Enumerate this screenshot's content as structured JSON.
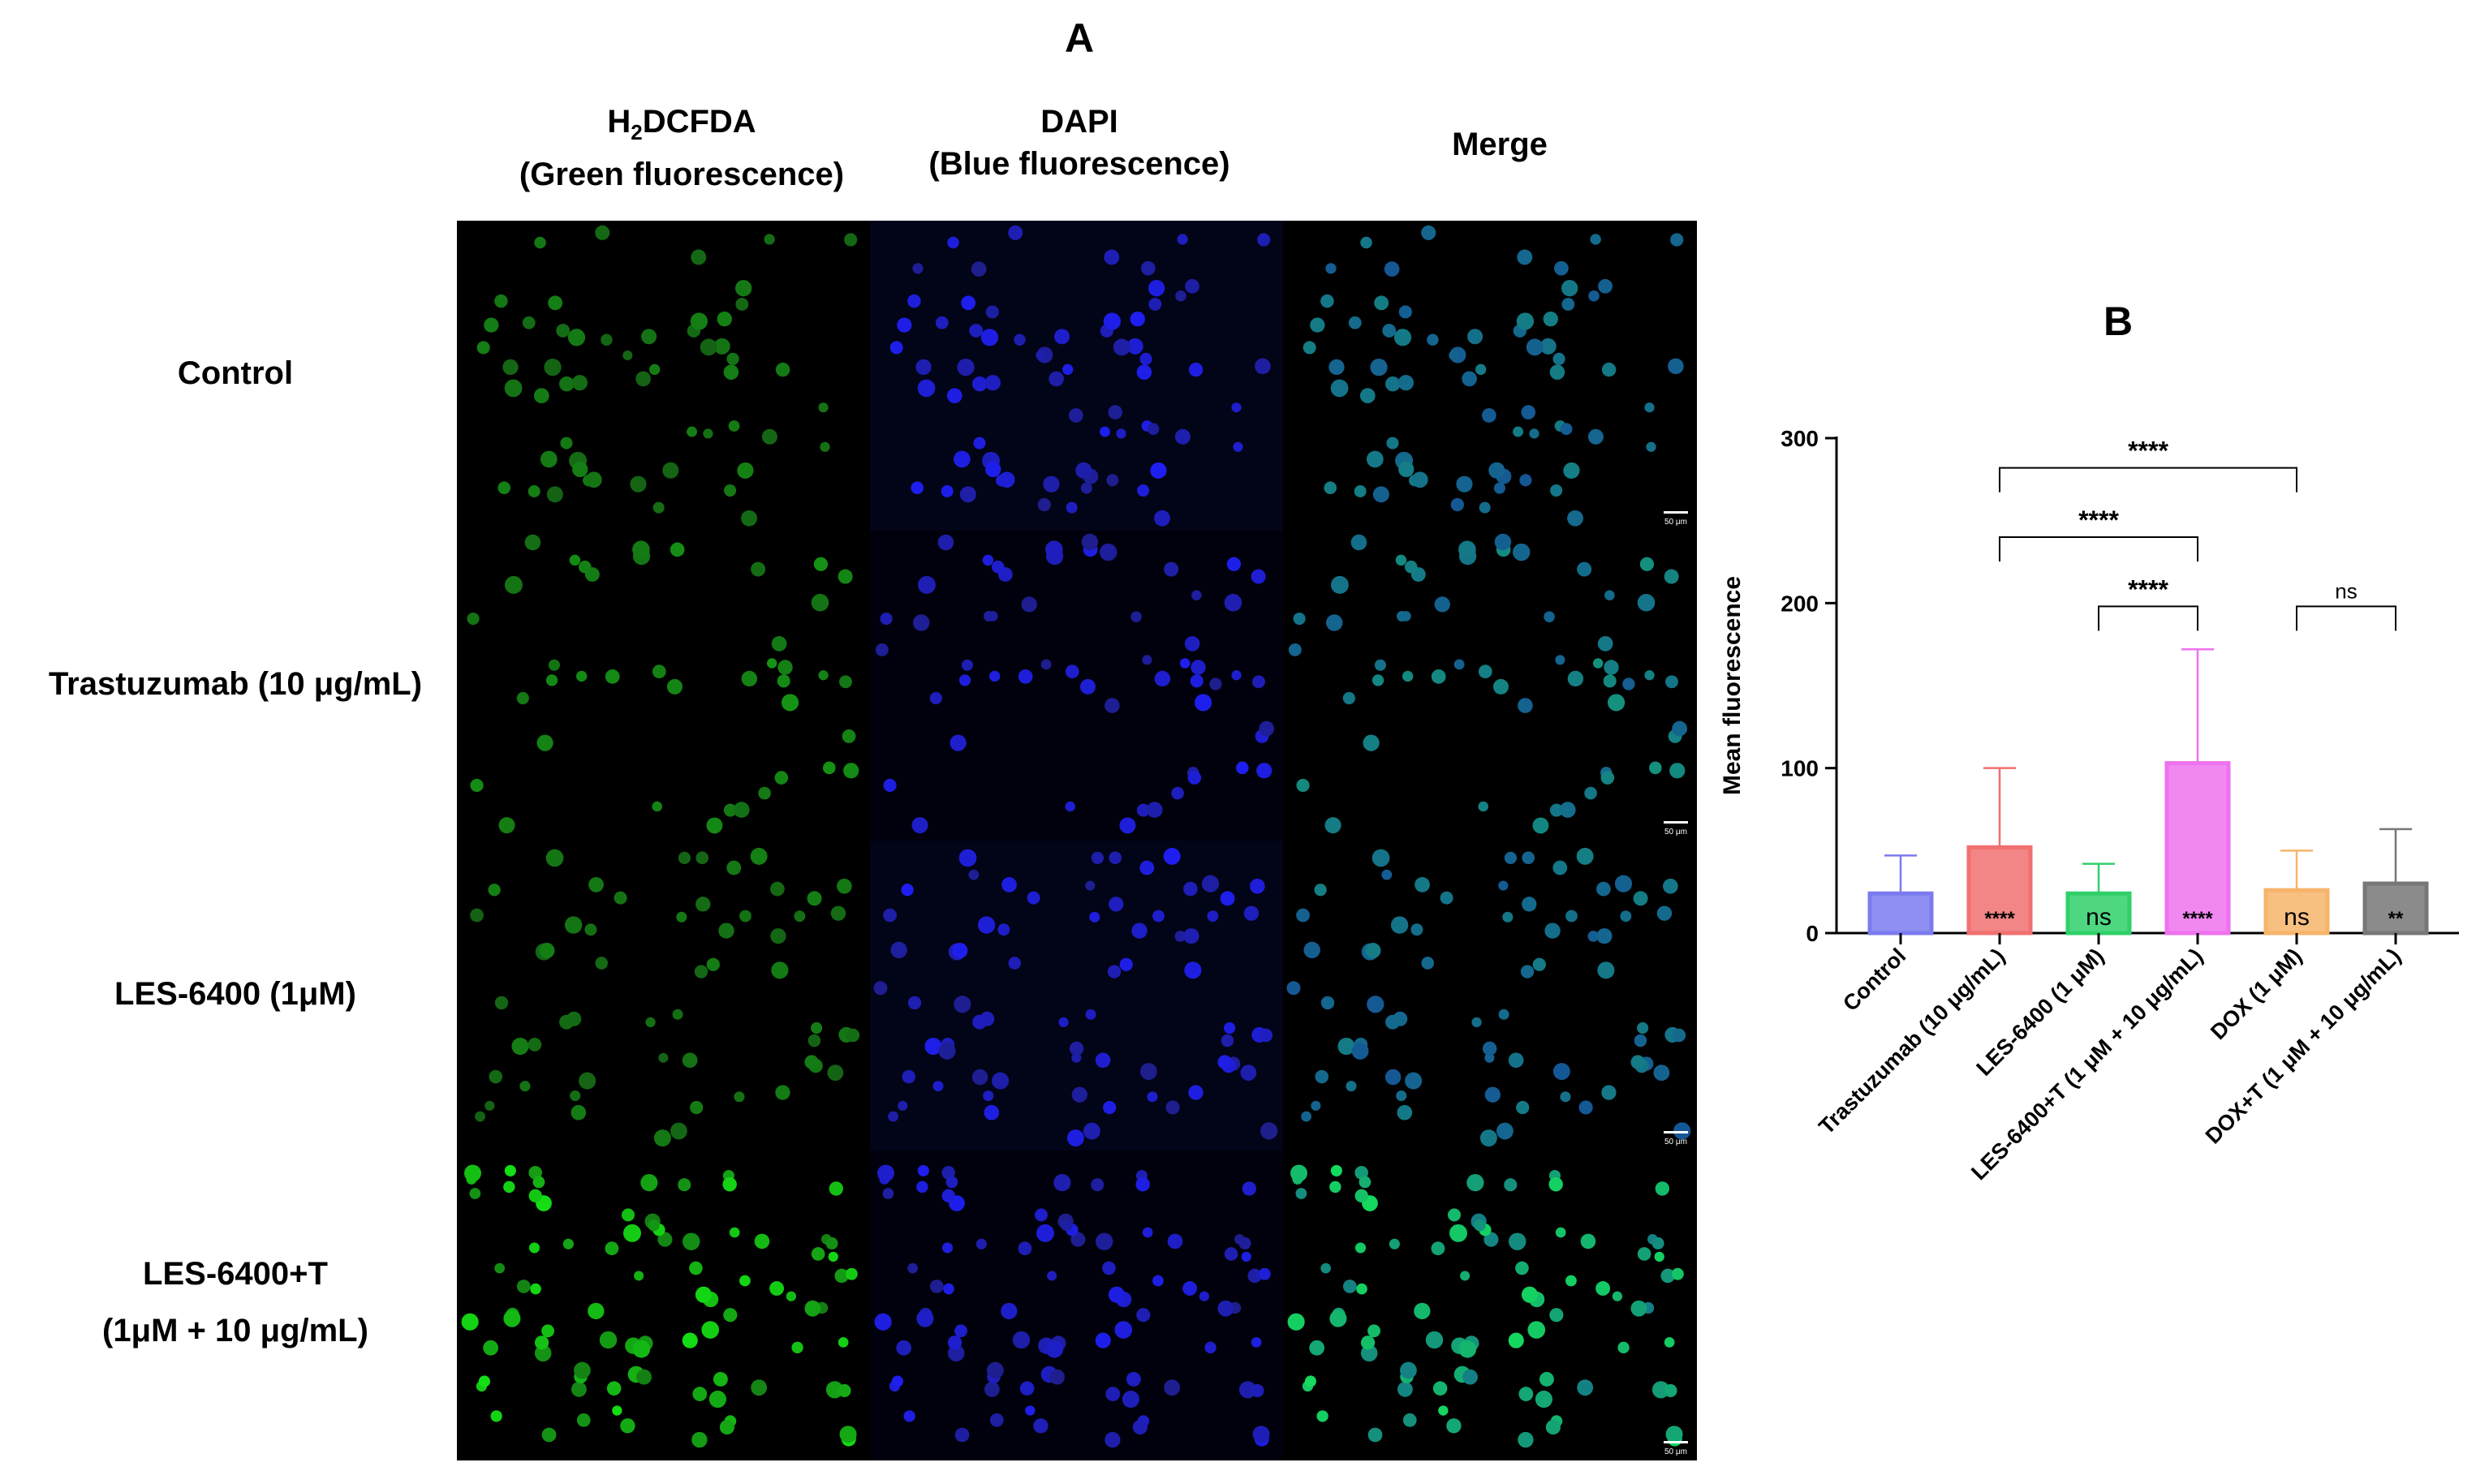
{
  "panel_a": {
    "letter": "A",
    "columns": [
      {
        "main": "H",
        "sub": "2",
        "rest": "DCFDA",
        "line2": "(Green fluorescence)"
      },
      {
        "main": "DAPI",
        "line2": "(Blue fluorescence)"
      },
      {
        "main": "Merge",
        "line2": ""
      }
    ],
    "rows": [
      {
        "line1": "Control",
        "line2": ""
      },
      {
        "line1": "Trastuzumab (10 μg/mL)",
        "line2": ""
      },
      {
        "line1": "LES-6400 (1μM)",
        "line2": ""
      },
      {
        "line1": "LES-6400+T",
        "line2": "(1μM + 10 μg/mL)"
      }
    ],
    "scale_bar_label": "50 μm"
  },
  "chart_data": {
    "type": "bar",
    "panel_letter": "B",
    "ylabel": "Mean fluorescence",
    "ylim": [
      0,
      300
    ],
    "yticks": [
      0,
      100,
      200,
      300
    ],
    "categories": [
      "Control",
      "Trastuzumab (10 μg/mL)",
      "LES-6400 (1 μM)",
      "LES-6400+T (1 μM + 10 μg/mL)",
      "DOX (1 μM)",
      "DOX+T (1 μM + 10 μg/mL)"
    ],
    "values": [
      24,
      52,
      24,
      103,
      26,
      30
    ],
    "errors": [
      23,
      48,
      18,
      69,
      24,
      33
    ],
    "colors": [
      "#7b7bf0",
      "#f07070",
      "#2fd06a",
      "#ee72ee",
      "#f6b46a",
      "#777777"
    ],
    "inbar_labels": [
      "",
      "****",
      "ns",
      "****",
      "ns",
      "**"
    ],
    "brackets": [
      {
        "from": 1,
        "to": 4,
        "y": 282,
        "label": "****"
      },
      {
        "from": 1,
        "to": 3,
        "y": 240,
        "label": "****"
      },
      {
        "from": 2,
        "to": 3,
        "y": 198,
        "label": "****"
      },
      {
        "from": 4,
        "to": 5,
        "y": 198,
        "label": "ns"
      }
    ]
  }
}
